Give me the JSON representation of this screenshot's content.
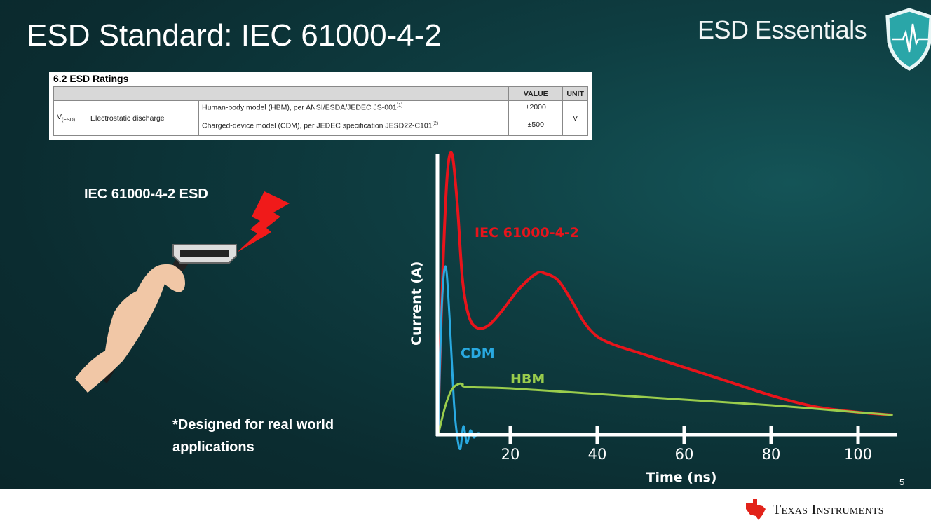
{
  "slide": {
    "title": "ESD Standard: IEC 61000-4-2",
    "brand": "ESD Essentials",
    "page_number": "5",
    "footer_company": "Texas Instruments",
    "left_label": "IEC 61000-4-2 ESD",
    "note": "*Designed for real world applications"
  },
  "table": {
    "caption": "6.2   ESD Ratings",
    "headers": [
      "VALUE",
      "UNIT"
    ],
    "symbol": "V",
    "symbol_sub": "(ESD)",
    "parameter": "Electrostatic discharge",
    "rows": [
      {
        "condition": "Human-body model (HBM), per ANSI/ESDA/JEDEC JS-001",
        "note": "(1)",
        "value": "±2000"
      },
      {
        "condition": "Charged-device model (CDM), per JEDEC specification JESD22-C101",
        "note": "(2)",
        "value": "±500"
      }
    ],
    "unit": "V"
  },
  "colors": {
    "iec": "#e8141b",
    "cdm": "#29a9e0",
    "hbm": "#9acd4c",
    "axis": "#ffffff"
  },
  "chart_data": {
    "type": "line",
    "title": "",
    "xlabel": "Time (ns)",
    "ylabel": "Current (A)",
    "xticks": [
      20,
      40,
      60,
      80,
      100
    ],
    "xlim": [
      0,
      110
    ],
    "ylim": [
      0,
      1
    ],
    "grid": false,
    "series": [
      {
        "name": "IEC 61000-4-2",
        "color": "#e8141b",
        "x": [
          3.3,
          4.5,
          5.5,
          6.6,
          7.8,
          9,
          10.5,
          12.5,
          15,
          18,
          22,
          26,
          28,
          31,
          34,
          37,
          40,
          44,
          50,
          60,
          70,
          80,
          90,
          100,
          108
        ],
        "y": [
          0.0,
          0.6,
          0.93,
          1.0,
          0.82,
          0.55,
          0.42,
          0.38,
          0.39,
          0.44,
          0.52,
          0.575,
          0.575,
          0.55,
          0.48,
          0.4,
          0.35,
          0.32,
          0.29,
          0.24,
          0.19,
          0.14,
          0.1,
          0.08,
          0.07
        ]
      },
      {
        "name": "CDM",
        "color": "#29a9e0",
        "x": [
          3.4,
          4.2,
          5.1,
          6.0,
          7.0,
          7.8,
          8.5,
          9.2,
          10.0,
          10.8,
          11.6,
          12.5,
          13.5
        ],
        "y": [
          0.0,
          0.45,
          0.6,
          0.42,
          0.12,
          -0.01,
          -0.05,
          0.03,
          -0.03,
          0.015,
          -0.01,
          0.005,
          0.0
        ]
      },
      {
        "name": "HBM",
        "color": "#9acd4c",
        "x": [
          3.4,
          5,
          6.5,
          8,
          9,
          10,
          20,
          40,
          60,
          80,
          100,
          108
        ],
        "y": [
          0.0,
          0.1,
          0.16,
          0.18,
          0.18,
          0.17,
          0.165,
          0.145,
          0.125,
          0.105,
          0.08,
          0.07
        ]
      }
    ]
  }
}
